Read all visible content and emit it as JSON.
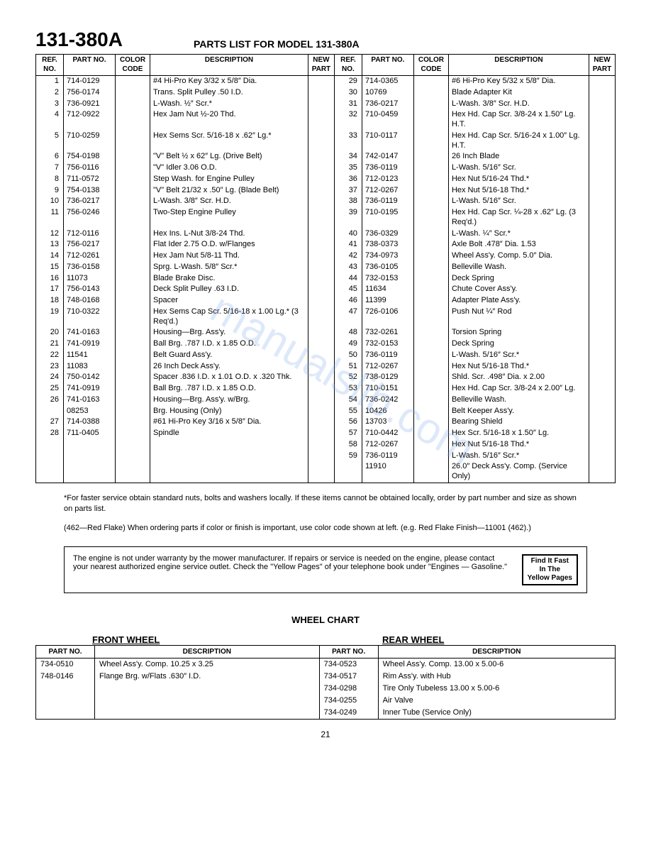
{
  "header": {
    "model": "131-380A",
    "title": "PARTS LIST FOR MODEL 131-380A"
  },
  "parts_headers": {
    "ref": "REF.\nNO.",
    "part": "PART\nNO.",
    "color": "COLOR\nCODE",
    "desc": "DESCRIPTION",
    "new": "NEW\nPART"
  },
  "left_rows": [
    {
      "ref": "1",
      "part": "714-0129",
      "desc": "#4 Hi-Pro Key 3/32 x 5/8″ Dia."
    },
    {
      "ref": "2",
      "part": "756-0174",
      "desc": "Trans. Split Pulley .50 I.D."
    },
    {
      "ref": "3",
      "part": "736-0921",
      "desc": "L-Wash. ½″ Scr.*"
    },
    {
      "ref": "4",
      "part": "712-0922",
      "desc": "Hex Jam Nut ½-20 Thd."
    },
    {
      "ref": "5",
      "part": "710-0259",
      "desc": "Hex Sems Scr. 5/16-18 x .62″ Lg.*"
    },
    {
      "ref": "6",
      "part": "754-0198",
      "desc": "\"V\" Belt ½ x 62″ Lg. (Drive Belt)"
    },
    {
      "ref": "7",
      "part": "756-0116",
      "desc": "\"V\" Idler 3.06 O.D."
    },
    {
      "ref": "8",
      "part": "711-0572",
      "desc": "Step Wash. for Engine Pulley"
    },
    {
      "ref": "9",
      "part": "754-0138",
      "desc": "\"V\" Belt 21/32 x .50″ Lg. (Blade Belt)"
    },
    {
      "ref": "10",
      "part": "736-0217",
      "desc": "L-Wash. 3/8″ Scr. H.D."
    },
    {
      "ref": "11",
      "part": "756-0246",
      "desc": "Two-Step Engine Pulley"
    },
    {
      "ref": "12",
      "part": "712-0116",
      "desc": "Hex Ins. L-Nut 3/8-24 Thd."
    },
    {
      "ref": "13",
      "part": "756-0217",
      "desc": "Flat Ider 2.75 O.D. w/Flanges"
    },
    {
      "ref": "14",
      "part": "712-0261",
      "desc": "Hex Jam Nut 5/8-11 Thd."
    },
    {
      "ref": "15",
      "part": "736-0158",
      "desc": "Sprg. L-Wash. 5/8″ Scr.*"
    },
    {
      "ref": "16",
      "part": "11073",
      "desc": "Blade Brake Disc."
    },
    {
      "ref": "17",
      "part": "756-0143",
      "desc": "Deck Split Pulley .63 I.D."
    },
    {
      "ref": "18",
      "part": "748-0168",
      "desc": "Spacer"
    },
    {
      "ref": "19",
      "part": "710-0322",
      "desc": "Hex Sems Cap Scr. 5/16-18 x 1.00 Lg.* (3 Req'd.)"
    },
    {
      "ref": "20",
      "part": "741-0163",
      "desc": "Housing—Brg. Ass'y."
    },
    {
      "ref": "21",
      "part": "741-0919",
      "desc": "Ball Brg. .787 I.D. x 1.85 O.D."
    },
    {
      "ref": "22",
      "part": "11541",
      "desc": "Belt Guard Ass'y."
    },
    {
      "ref": "23",
      "part": "11083",
      "desc": "26 Inch Deck Ass'y."
    },
    {
      "ref": "24",
      "part": "750-0142",
      "desc": "Spacer .836 I.D. x 1.01 O.D. x .320 Thk."
    },
    {
      "ref": "25",
      "part": "741-0919",
      "desc": "Ball Brg. .787 I.D. x 1.85 O.D."
    },
    {
      "ref": "26",
      "part": "741-0163",
      "desc": "Housing—Brg. Ass'y. w/Brg."
    },
    {
      "ref": "",
      "part": "08253",
      "desc": "Brg. Housing (Only)"
    },
    {
      "ref": "27",
      "part": "714-0388",
      "desc": "#61 Hi-Pro Key 3/16 x 5/8″ Dia."
    },
    {
      "ref": "28",
      "part": "711-0405",
      "desc": "Spindle"
    }
  ],
  "right_rows": [
    {
      "ref": "29",
      "part": "714-0365",
      "desc": "#6 Hi-Pro Key 5/32 x 5/8″ Dia."
    },
    {
      "ref": "30",
      "part": "10769",
      "desc": "Blade Adapter Kit"
    },
    {
      "ref": "31",
      "part": "736-0217",
      "desc": "L-Wash. 3/8″ Scr. H.D."
    },
    {
      "ref": "32",
      "part": "710-0459",
      "desc": "Hex Hd. Cap Scr. 3/8-24 x 1.50″ Lg. H.T."
    },
    {
      "ref": "33",
      "part": "710-0117",
      "desc": "Hex Hd. Cap Scr. 5/16-24 x 1.00″ Lg. H.T."
    },
    {
      "ref": "34",
      "part": "742-0147",
      "desc": "26 Inch Blade"
    },
    {
      "ref": "35",
      "part": "736-0119",
      "desc": "L-Wash. 5/16″ Scr."
    },
    {
      "ref": "36",
      "part": "712-0123",
      "desc": "Hex Nut 5/16-24 Thd.*"
    },
    {
      "ref": "37",
      "part": "712-0267",
      "desc": "Hex Nut 5/16-18 Thd.*"
    },
    {
      "ref": "38",
      "part": "736-0119",
      "desc": "L-Wash. 5/16″ Scr."
    },
    {
      "ref": "39",
      "part": "710-0195",
      "desc": "Hex Hd. Cap Scr. ¼-28 x .62″ Lg. (3 Req'd.)"
    },
    {
      "ref": "40",
      "part": "736-0329",
      "desc": "L-Wash. ¼″ Scr.*"
    },
    {
      "ref": "41",
      "part": "738-0373",
      "desc": "Axle Bolt .478″ Dia. 1.53"
    },
    {
      "ref": "42",
      "part": "734-0973",
      "desc": "Wheel Ass'y. Comp. 5.0″ Dia."
    },
    {
      "ref": "43",
      "part": "736-0105",
      "desc": "Belleville Wash."
    },
    {
      "ref": "44",
      "part": "732-0153",
      "desc": "Deck Spring"
    },
    {
      "ref": "45",
      "part": "11634",
      "desc": "Chute Cover Ass'y."
    },
    {
      "ref": "46",
      "part": "11399",
      "desc": "Adapter Plate Ass'y."
    },
    {
      "ref": "47",
      "part": "726-0106",
      "desc": "Push Nut ¼″ Rod"
    },
    {
      "ref": "48",
      "part": "732-0261",
      "desc": "Torsion Spring"
    },
    {
      "ref": "49",
      "part": "732-0153",
      "desc": "Deck Spring"
    },
    {
      "ref": "50",
      "part": "736-0119",
      "desc": "L-Wash. 5/16″ Scr.*"
    },
    {
      "ref": "51",
      "part": "712-0267",
      "desc": "Hex Nut 5/16-18 Thd.*"
    },
    {
      "ref": "52",
      "part": "738-0129",
      "desc": "Shld. Scr. .498″ Dia. x 2.00"
    },
    {
      "ref": "53",
      "part": "710-0151",
      "desc": "Hex Hd. Cap Scr. 3/8-24 x 2.00″ Lg."
    },
    {
      "ref": "54",
      "part": "736-0242",
      "desc": "Belleville Wash."
    },
    {
      "ref": "55",
      "part": "10426",
      "desc": "Belt Keeper Ass'y."
    },
    {
      "ref": "56",
      "part": "13703",
      "desc": "Bearing Shield"
    },
    {
      "ref": "57",
      "part": "710-0442",
      "desc": "Hex Scr. 5/16-18 x 1.50″ Lg."
    },
    {
      "ref": "58",
      "part": "712-0267",
      "desc": "Hex Nut 5/16-18 Thd.*"
    },
    {
      "ref": "59",
      "part": "736-0119",
      "desc": "L-Wash. 5/16″ Scr.*"
    },
    {
      "ref": "",
      "part": "11910",
      "desc": "26.0″ Deck Ass'y. Comp. (Service Only)"
    }
  ],
  "footnotes": {
    "line1": "*For faster service obtain standard nuts, bolts and washers locally. If these items cannot be obtained locally, order by part number and size as shown on parts list.",
    "line2": "(462—Red Flake) When ordering parts if color or finish is important, use color code shown at left. (e.g. Red Flake Finish—11001 (462).)"
  },
  "engine_box": {
    "text": "The engine is not under warranty by the mower manufacturer. If repairs or service is needed on the engine, please contact your nearest authorized engine service outlet. Check the \"Yellow Pages\" of your telephone book under \"Engines — Gasoline.\"",
    "badge1": "Find It Fast",
    "badge2": "In The",
    "badge3": "Yellow Pages"
  },
  "wheel": {
    "title": "WHEEL CHART",
    "front_label": "FRONT WHEEL",
    "rear_label": "REAR WHEEL",
    "headers": {
      "part": "PART\nNO.",
      "desc": "DESCRIPTION"
    },
    "front_rows": [
      {
        "part": "734-0510",
        "desc": "Wheel Ass'y. Comp. 10.25 x 3.25"
      },
      {
        "part": "748-0146",
        "desc": "Flange Brg. w/Flats .630″ I.D."
      }
    ],
    "rear_rows": [
      {
        "part": "734-0523",
        "desc": "Wheel Ass'y. Comp. 13.00 x 5.00-6"
      },
      {
        "part": "734-0517",
        "desc": "Rim Ass'y. with Hub"
      },
      {
        "part": "734-0298",
        "desc": "Tire Only Tubeless 13.00 x 5.00-6"
      },
      {
        "part": "734-0255",
        "desc": "Air Valve"
      },
      {
        "part": "734-0249",
        "desc": "Inner Tube (Service Only)"
      }
    ]
  },
  "page_no": "21",
  "watermark": "manualslib.com"
}
